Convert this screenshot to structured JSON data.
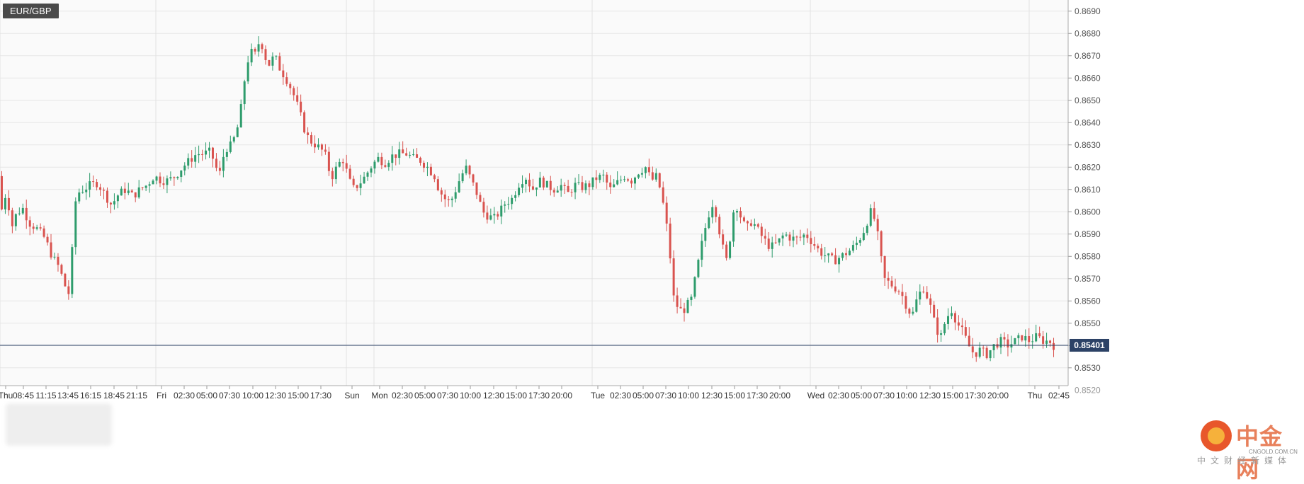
{
  "symbol": "EUR/GBP",
  "watermark": {
    "name": "中金网",
    "domain": "CNGOLD.COM.CN",
    "subtitle": "中文财经新媒体"
  },
  "colors": {
    "up": "#2e9c6c",
    "down": "#d9534f",
    "price_line": "#2c4266",
    "grid": "#e6e6e6"
  },
  "chart_data": {
    "type": "candlestick",
    "title": "EUR/GBP",
    "ylim": [
      0.8522,
      0.8695
    ],
    "y_ticks": [
      "0.8530",
      "0.8540",
      "0.8550",
      "0.8560",
      "0.8570",
      "0.8580",
      "0.8590",
      "0.8600",
      "0.8610",
      "0.8620",
      "0.8630",
      "0.8640",
      "0.8650",
      "0.8660",
      "0.8670",
      "0.8680",
      "0.8690"
    ],
    "last_price": "0.85401",
    "hidden_tick_label": "0.8520",
    "x_ticks": [
      "Thu",
      "08:45",
      "11:15",
      "13:45",
      "16:15",
      "18:45",
      "21:15",
      "Fri",
      "02:30",
      "05:00",
      "07:30",
      "10:00",
      "12:30",
      "15:00",
      "17:30",
      "Sun",
      "Mon",
      "02:30",
      "05:00",
      "07:30",
      "10:00",
      "12:30",
      "15:00",
      "17:30",
      "20:00",
      "Tue",
      "02:30",
      "05:00",
      "07:30",
      "10:00",
      "12:30",
      "15:00",
      "17:30",
      "20:00",
      "Wed",
      "02:30",
      "05:00",
      "07:30",
      "10:00",
      "12:30",
      "15:00",
      "17:30",
      "20:00",
      "Thu",
      "02:45"
    ],
    "path_points": [
      [
        0,
        0.8616
      ],
      [
        6,
        0.8598
      ],
      [
        12,
        0.8612
      ],
      [
        18,
        0.8592
      ],
      [
        24,
        0.8598
      ],
      [
        34,
        0.8602
      ],
      [
        44,
        0.8595
      ],
      [
        56,
        0.8592
      ],
      [
        66,
        0.8588
      ],
      [
        76,
        0.858
      ],
      [
        86,
        0.8575
      ],
      [
        94,
        0.8567
      ],
      [
        100,
        0.8563
      ],
      [
        106,
        0.859
      ],
      [
        110,
        0.8608
      ],
      [
        120,
        0.861
      ],
      [
        130,
        0.8612
      ],
      [
        140,
        0.8613
      ],
      [
        150,
        0.8608
      ],
      [
        160,
        0.8603
      ],
      [
        170,
        0.8608
      ],
      [
        180,
        0.861
      ],
      [
        190,
        0.8607
      ],
      [
        200,
        0.861
      ],
      [
        210,
        0.8612
      ],
      [
        220,
        0.8616
      ],
      [
        230,
        0.8614
      ],
      [
        240,
        0.8614
      ],
      [
        250,
        0.8616
      ],
      [
        260,
        0.862
      ],
      [
        270,
        0.8623
      ],
      [
        280,
        0.8626
      ],
      [
        290,
        0.8626
      ],
      [
        300,
        0.8627
      ],
      [
        305,
        0.8622
      ],
      [
        312,
        0.8616
      ],
      [
        320,
        0.8628
      ],
      [
        330,
        0.863
      ],
      [
        340,
        0.864
      ],
      [
        345,
        0.8652
      ],
      [
        350,
        0.8665
      ],
      [
        356,
        0.8672
      ],
      [
        362,
        0.867
      ],
      [
        370,
        0.8678
      ],
      [
        376,
        0.867
      ],
      [
        382,
        0.8666
      ],
      [
        390,
        0.867
      ],
      [
        398,
        0.8664
      ],
      [
        406,
        0.866
      ],
      [
        414,
        0.8655
      ],
      [
        420,
        0.865
      ],
      [
        428,
        0.8642
      ],
      [
        434,
        0.8635
      ],
      [
        440,
        0.8632
      ],
      [
        448,
        0.863
      ],
      [
        456,
        0.8628
      ],
      [
        462,
        0.8625
      ],
      [
        470,
        0.8615
      ],
      [
        478,
        0.862
      ],
      [
        486,
        0.8624
      ],
      [
        492,
        0.8618
      ],
      [
        500,
        0.861
      ],
      [
        508,
        0.8612
      ],
      [
        516,
        0.8615
      ],
      [
        526,
        0.862
      ],
      [
        536,
        0.8624
      ],
      [
        546,
        0.8622
      ],
      [
        556,
        0.8625
      ],
      [
        566,
        0.8626
      ],
      [
        576,
        0.8626
      ],
      [
        586,
        0.8624
      ],
      [
        596,
        0.8623
      ],
      [
        606,
        0.862
      ],
      [
        616,
        0.8616
      ],
      [
        622,
        0.861
      ],
      [
        630,
        0.8606
      ],
      [
        638,
        0.8604
      ],
      [
        646,
        0.861
      ],
      [
        652,
        0.8615
      ],
      [
        660,
        0.862
      ],
      [
        668,
        0.8614
      ],
      [
        676,
        0.8608
      ],
      [
        684,
        0.86
      ],
      [
        692,
        0.8598
      ],
      [
        700,
        0.8597
      ],
      [
        708,
        0.86
      ],
      [
        716,
        0.8604
      ],
      [
        726,
        0.8606
      ],
      [
        734,
        0.8612
      ],
      [
        744,
        0.8616
      ],
      [
        754,
        0.861
      ],
      [
        764,
        0.8614
      ],
      [
        774,
        0.8612
      ],
      [
        784,
        0.861
      ],
      [
        794,
        0.8612
      ],
      [
        804,
        0.8608
      ],
      [
        814,
        0.8612
      ],
      [
        824,
        0.8611
      ],
      [
        834,
        0.8612
      ],
      [
        844,
        0.8615
      ],
      [
        854,
        0.8616
      ],
      [
        864,
        0.861
      ],
      [
        874,
        0.8613
      ],
      [
        884,
        0.8616
      ],
      [
        894,
        0.8614
      ],
      [
        904,
        0.8618
      ],
      [
        914,
        0.862
      ],
      [
        922,
        0.8614
      ],
      [
        930,
        0.8616
      ],
      [
        936,
        0.8608
      ],
      [
        942,
        0.8598
      ],
      [
        948,
        0.8582
      ],
      [
        954,
        0.856
      ],
      [
        960,
        0.8557
      ],
      [
        966,
        0.8555
      ],
      [
        972,
        0.8558
      ],
      [
        978,
        0.856
      ],
      [
        984,
        0.857
      ],
      [
        990,
        0.858
      ],
      [
        996,
        0.859
      ],
      [
        1004,
        0.86
      ],
      [
        1010,
        0.8605
      ],
      [
        1016,
        0.8595
      ],
      [
        1022,
        0.8585
      ],
      [
        1028,
        0.8578
      ],
      [
        1034,
        0.859
      ],
      [
        1040,
        0.8605
      ],
      [
        1048,
        0.8598
      ],
      [
        1056,
        0.8592
      ],
      [
        1064,
        0.8596
      ],
      [
        1072,
        0.8592
      ],
      [
        1080,
        0.8588
      ],
      [
        1090,
        0.8584
      ],
      [
        1100,
        0.8586
      ],
      [
        1110,
        0.859
      ],
      [
        1120,
        0.8588
      ],
      [
        1130,
        0.8588
      ],
      [
        1140,
        0.859
      ],
      [
        1150,
        0.8586
      ],
      [
        1160,
        0.8582
      ],
      [
        1170,
        0.858
      ],
      [
        1180,
        0.8578
      ],
      [
        1190,
        0.858
      ],
      [
        1200,
        0.8582
      ],
      [
        1210,
        0.8585
      ],
      [
        1220,
        0.859
      ],
      [
        1226,
        0.8595
      ],
      [
        1232,
        0.86
      ],
      [
        1238,
        0.8596
      ],
      [
        1244,
        0.8585
      ],
      [
        1250,
        0.857
      ],
      [
        1258,
        0.8568
      ],
      [
        1266,
        0.8566
      ],
      [
        1274,
        0.8564
      ],
      [
        1282,
        0.8558
      ],
      [
        1290,
        0.8553
      ],
      [
        1298,
        0.8562
      ],
      [
        1306,
        0.8566
      ],
      [
        1314,
        0.856
      ],
      [
        1322,
        0.855
      ],
      [
        1330,
        0.8543
      ],
      [
        1338,
        0.8552
      ],
      [
        1346,
        0.8556
      ],
      [
        1354,
        0.855
      ],
      [
        1362,
        0.8546
      ],
      [
        1370,
        0.854
      ],
      [
        1378,
        0.8536
      ],
      [
        1386,
        0.8538
      ],
      [
        1396,
        0.8536
      ],
      [
        1406,
        0.854
      ],
      [
        1416,
        0.8542
      ],
      [
        1426,
        0.854
      ],
      [
        1436,
        0.8542
      ],
      [
        1446,
        0.8544
      ],
      [
        1456,
        0.8542
      ],
      [
        1466,
        0.8544
      ],
      [
        1476,
        0.8542
      ],
      [
        1484,
        0.8542
      ],
      [
        1490,
        0.854
      ]
    ],
    "candle_count": 300,
    "grid": true
  }
}
